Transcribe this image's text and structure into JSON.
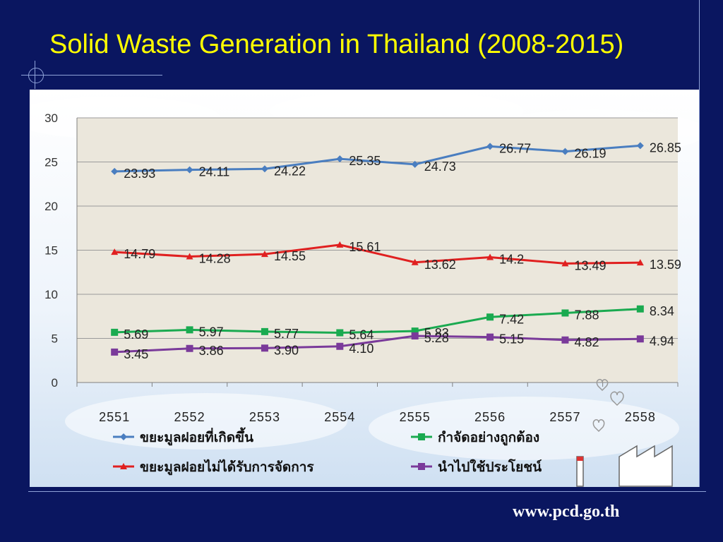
{
  "slide": {
    "title": "Solid Waste Generation in Thailand (2008-2015)",
    "url": "www.pcd.go.th"
  },
  "colors": {
    "background": "#0a1660",
    "title": "#ffff00",
    "plot_area": "#ebe7dc"
  },
  "chart_data": {
    "type": "line",
    "categories": [
      "2551",
      "2552",
      "2553",
      "2554",
      "2555",
      "2556",
      "2557",
      "2558"
    ],
    "ylim": [
      0,
      30
    ],
    "yticks": [
      0,
      5,
      10,
      15,
      20,
      25,
      30
    ],
    "grid": true,
    "legend_position": "bottom",
    "series": [
      {
        "name": "ขยะมูลฝอยที่เกิดขึ้น",
        "color": "#4a7ec0",
        "marker": "diamond",
        "values": [
          23.93,
          24.11,
          24.22,
          25.35,
          24.73,
          26.77,
          26.19,
          26.85
        ],
        "labels": [
          "23.93",
          "24.11",
          "24.22",
          "25.35",
          "24.73",
          "26.77",
          "26.19",
          "26.85"
        ]
      },
      {
        "name": "ขยะมูลฝอยไม่ได้รับการจัดการ",
        "color": "#e02020",
        "marker": "triangle",
        "values": [
          14.79,
          14.28,
          14.55,
          15.61,
          13.62,
          14.2,
          13.49,
          13.59
        ],
        "labels": [
          "14.79",
          "14.28",
          "14.55",
          "15.61",
          "13.62",
          "14.2",
          "13.49",
          "13.59"
        ]
      },
      {
        "name": "กำจัดอย่างถูกต้อง",
        "color": "#1aaa50",
        "marker": "square",
        "values": [
          5.69,
          5.97,
          5.77,
          5.64,
          5.83,
          7.42,
          7.88,
          8.34
        ],
        "labels": [
          "5.69",
          "5.97",
          "5.77",
          "5.64",
          "5.83",
          "7.42",
          "7.88",
          "8.34"
        ]
      },
      {
        "name": "นำไปใช้ประโยชน์",
        "color": "#7a3a9a",
        "marker": "square",
        "values": [
          3.45,
          3.86,
          3.9,
          4.1,
          5.28,
          5.15,
          4.82,
          4.94
        ],
        "labels": [
          "3.45",
          "3.86",
          "3.90",
          "4.10",
          "5.28",
          "5.15",
          "4.82",
          "4.94"
        ]
      }
    ]
  }
}
